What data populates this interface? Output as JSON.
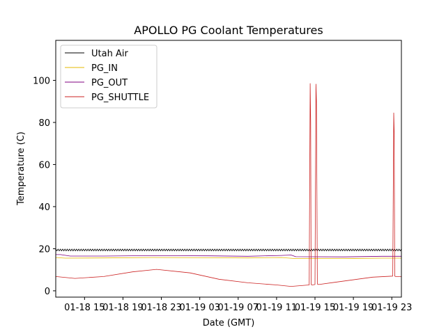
{
  "chart_data": {
    "type": "line",
    "title": "APOLLO PG Coolant Temperatures",
    "xlabel": "Date (GMT)",
    "ylabel": "Temperature (C)",
    "x_unit": "hours since 01-18 12:00 GMT",
    "xlim": [
      0,
      36
    ],
    "ylim": [
      -3,
      119
    ],
    "y_ticks": [
      0,
      20,
      40,
      60,
      80,
      100
    ],
    "x_ticks": [
      {
        "x": 3,
        "label": "01-18 15"
      },
      {
        "x": 7,
        "label": "01-18 19"
      },
      {
        "x": 11,
        "label": "01-18 23"
      },
      {
        "x": 15,
        "label": "01-19 03"
      },
      {
        "x": 19,
        "label": "01-19 07"
      },
      {
        "x": 23,
        "label": "01-19 11"
      },
      {
        "x": 27,
        "label": "01-19 15"
      },
      {
        "x": 31,
        "label": "01-19 19"
      },
      {
        "x": 35,
        "label": "01-19 23"
      }
    ],
    "legend_position": "top-left",
    "grid": false,
    "series": [
      {
        "name": "Utah Air",
        "color": "#000000",
        "noise": 0.45,
        "x": [
          0,
          36
        ],
        "y": [
          19.4,
          19.4
        ]
      },
      {
        "name": "PG_IN",
        "color": "#e6b800",
        "x": [
          0,
          1,
          5,
          10,
          16,
          20,
          23.5,
          25,
          30,
          34,
          36
        ],
        "y": [
          15.8,
          15.5,
          15.6,
          15.8,
          15.7,
          15.6,
          15.8,
          15.3,
          15.3,
          15.5,
          15.5
        ]
      },
      {
        "name": "PG_OUT",
        "color": "#800080",
        "x": [
          0,
          0.5,
          1.5,
          5,
          10,
          16,
          20,
          23.5,
          24.5,
          25,
          30,
          34,
          36
        ],
        "y": [
          17.2,
          17.2,
          16.5,
          16.5,
          16.7,
          16.6,
          16.4,
          16.8,
          17.0,
          16.2,
          16.1,
          16.4,
          16.4
        ]
      },
      {
        "name": "PG_SHUTTLE",
        "color": "#cc2222",
        "x": [
          0,
          2,
          5,
          8,
          10.5,
          14,
          17,
          20,
          23,
          24.5,
          26.4,
          26.5,
          26.55,
          26.6,
          26.7,
          27.0,
          27.1,
          27.15,
          27.25,
          27.4,
          29,
          33,
          35.1,
          35.2,
          35.25,
          35.3,
          35.4,
          36
        ],
        "y": [
          6.8,
          5.9,
          6.8,
          9.0,
          10.2,
          8.5,
          5.5,
          3.8,
          2.8,
          2.1,
          2.8,
          98.5,
          80,
          3.0,
          2.8,
          3.0,
          98.2,
          90,
          3.2,
          3.0,
          4.0,
          6.5,
          7.0,
          84.5,
          75,
          7.0,
          6.8,
          6.8
        ]
      }
    ]
  }
}
